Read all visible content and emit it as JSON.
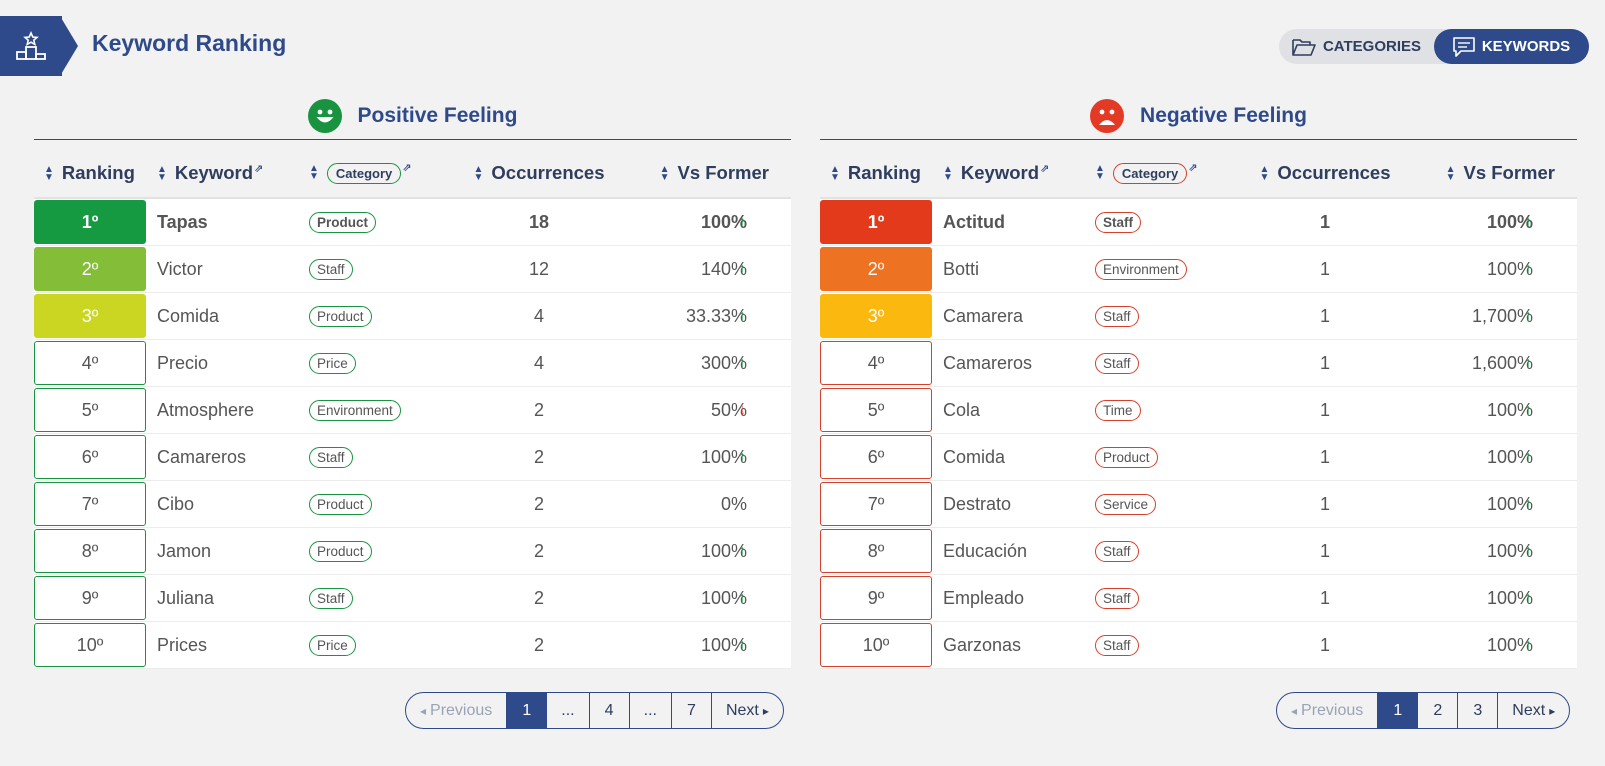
{
  "header": {
    "title": "Keyword Ranking",
    "toggle": {
      "categories": "CATEGORIES",
      "keywords": "KEYWORDS"
    }
  },
  "columns": {
    "ranking": "Ranking",
    "keyword": "Keyword",
    "category": "Category",
    "occurrences": "Occurrences",
    "vs_former": "Vs Former"
  },
  "colors": {
    "primary": "#2f4a8a",
    "positive": "#1a9340",
    "negative": "#e33a26"
  },
  "positive": {
    "title": "Positive Feeling",
    "rows": [
      {
        "rank": "1º",
        "keyword": "Tapas",
        "category": "Product",
        "occurrences": "18",
        "vs": "100%",
        "trend": "up",
        "color": "#159a42",
        "bold": true
      },
      {
        "rank": "2º",
        "keyword": "Victor",
        "category": "Staff",
        "occurrences": "12",
        "vs": "140%",
        "trend": "up",
        "color": "#84bd38"
      },
      {
        "rank": "3º",
        "keyword": "Comida",
        "category": "Product",
        "occurrences": "4",
        "vs": "33.33%",
        "trend": "up",
        "color": "#cbd622"
      },
      {
        "rank": "4º",
        "keyword": "Precio",
        "category": "Price",
        "occurrences": "4",
        "vs": "300%",
        "trend": "up"
      },
      {
        "rank": "5º",
        "keyword": "Atmosphere",
        "category": "Environment",
        "occurrences": "2",
        "vs": "50%",
        "trend": "down"
      },
      {
        "rank": "6º",
        "keyword": "Camareros",
        "category": "Staff",
        "occurrences": "2",
        "vs": "100%",
        "trend": "up"
      },
      {
        "rank": "7º",
        "keyword": "Cibo",
        "category": "Product",
        "occurrences": "2",
        "vs": "0%",
        "trend": "none"
      },
      {
        "rank": "8º",
        "keyword": "Jamon",
        "category": "Product",
        "occurrences": "2",
        "vs": "100%",
        "trend": "up"
      },
      {
        "rank": "9º",
        "keyword": "Juliana",
        "category": "Staff",
        "occurrences": "2",
        "vs": "100%",
        "trend": "up"
      },
      {
        "rank": "10º",
        "keyword": "Prices",
        "category": "Price",
        "occurrences": "2",
        "vs": "100%",
        "trend": "up"
      }
    ],
    "pagination": [
      "Previous",
      "1",
      "...",
      "4",
      "...",
      "7",
      "Next"
    ]
  },
  "negative": {
    "title": "Negative Feeling",
    "rows": [
      {
        "rank": "1º",
        "keyword": "Actitud",
        "category": "Staff",
        "occurrences": "1",
        "vs": "100%",
        "trend": "up",
        "color": "#e33a1c",
        "bold": true
      },
      {
        "rank": "2º",
        "keyword": "Botti",
        "category": "Environment",
        "occurrences": "1",
        "vs": "100%",
        "trend": "up",
        "color": "#ed7222"
      },
      {
        "rank": "3º",
        "keyword": "Camarera",
        "category": "Staff",
        "occurrences": "1",
        "vs": "1,700%",
        "trend": "up",
        "color": "#fbb80f"
      },
      {
        "rank": "4º",
        "keyword": "Camareros",
        "category": "Staff",
        "occurrences": "1",
        "vs": "1,600%",
        "trend": "up"
      },
      {
        "rank": "5º",
        "keyword": "Cola",
        "category": "Time",
        "occurrences": "1",
        "vs": "100%",
        "trend": "up"
      },
      {
        "rank": "6º",
        "keyword": "Comida",
        "category": "Product",
        "occurrences": "1",
        "vs": "100%",
        "trend": "up"
      },
      {
        "rank": "7º",
        "keyword": "Destrato",
        "category": "Service",
        "occurrences": "1",
        "vs": "100%",
        "trend": "up"
      },
      {
        "rank": "8º",
        "keyword": "Educación",
        "category": "Staff",
        "occurrences": "1",
        "vs": "100%",
        "trend": "up"
      },
      {
        "rank": "9º",
        "keyword": "Empleado",
        "category": "Staff",
        "occurrences": "1",
        "vs": "100%",
        "trend": "up"
      },
      {
        "rank": "10º",
        "keyword": "Garzonas",
        "category": "Staff",
        "occurrences": "1",
        "vs": "100%",
        "trend": "up"
      }
    ],
    "pagination": [
      "Previous",
      "1",
      "2",
      "3",
      "Next"
    ]
  }
}
